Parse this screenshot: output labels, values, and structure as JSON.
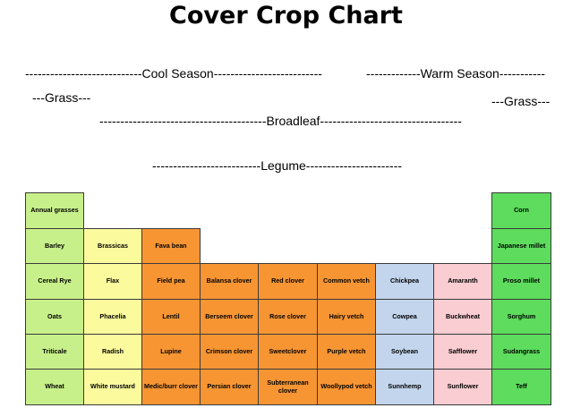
{
  "title": "Cover Crop Chart",
  "headers": {
    "cool_season": "----------------------------Cool Season--------------------------",
    "warm_season": "-------------Warm Season-----------",
    "grass_left": "---Grass---",
    "grass_right": "---Grass---",
    "broadleaf": "----------------------------------------Broadleaf----------------------------------",
    "legume": "--------------------------Legume-----------------------"
  },
  "colors": {
    "cool_grass": "#c8f08a",
    "cool_broadleaf": "#fbfb9e",
    "legume": "#f79533",
    "warm_legume": "#c2d5ec",
    "warm_broadleaf": "#f9cdd1",
    "warm_grass": "#5ddc5d"
  },
  "table": {
    "cool_grasses": [
      "Annual grasses",
      "Barley",
      "Cereal Rye",
      "Oats",
      "Triticale",
      "Wheat"
    ],
    "cool_broadleaf": [
      "Brassicas",
      "Flax",
      "Phacelia",
      "Radish",
      "White mustard"
    ],
    "legume_col1": [
      "Fava bean",
      "Field pea",
      "Lentil",
      "Lupine",
      "Medic/burr clover"
    ],
    "legume_col2": [
      "Balansa clover",
      "Berseem clover",
      "Crimson clover",
      "Persian clover"
    ],
    "legume_col3": [
      "Red clover",
      "Rose clover",
      "Sweetclover",
      "Subterranean clover"
    ],
    "legume_col4": [
      "Common vetch",
      "Hairy vetch",
      "Purple vetch",
      "Woollypod vetch"
    ],
    "warm_legume": [
      "Chickpea",
      "Cowpea",
      "Soybean",
      "Sunnhemp"
    ],
    "warm_broadleaf": [
      "Amaranth",
      "Buckwheat",
      "Safflower",
      "Sunflower"
    ],
    "warm_grasses": [
      "Corn",
      "Japanese millet",
      "Proso millet",
      "Sorghum",
      "Sudangrass",
      "Teff"
    ]
  }
}
